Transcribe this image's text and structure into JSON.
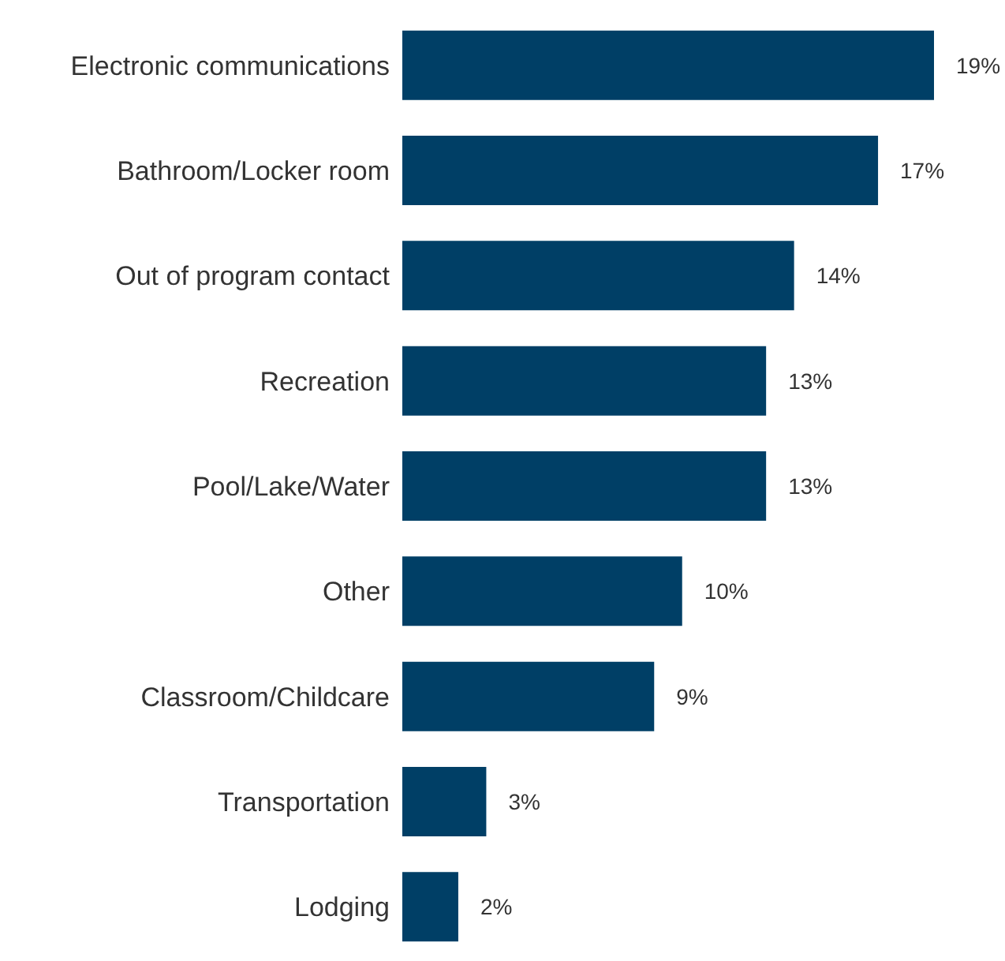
{
  "chart_data": {
    "type": "bar",
    "orientation": "horizontal",
    "categories": [
      "Electronic communications",
      "Bathroom/Locker room",
      "Out of program contact",
      "Recreation",
      "Pool/Lake/Water",
      "Other",
      "Classroom/Childcare",
      "Transportation",
      "Lodging"
    ],
    "values": [
      19,
      17,
      14,
      13,
      13,
      10,
      9,
      3,
      2
    ],
    "color": "#003f66",
    "data_labels": true,
    "value_labels": [
      "19%",
      "17%",
      "14%",
      "13%",
      "13%",
      "10%",
      "9%",
      "3%",
      "2%"
    ],
    "grid": false,
    "legend": false
  }
}
